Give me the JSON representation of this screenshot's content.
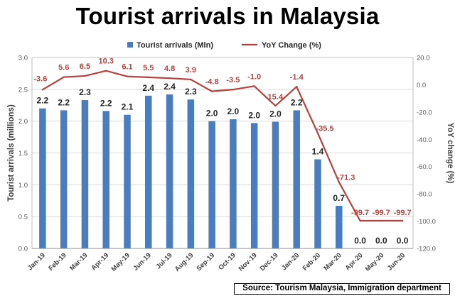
{
  "chart_data": {
    "type": "bar",
    "title": "Tourist arrivals in Malaysia",
    "categories": [
      "Jan-19",
      "Feb-19",
      "Mar-19",
      "Apr-19",
      "May-19",
      "Jun-19",
      "Jul-19",
      "Aug-19",
      "Sep-19",
      "Oct-19",
      "Nov-19",
      "Dec-19",
      "Jan-20",
      "Feb-20",
      "Mar-20",
      "Apr-20",
      "May-20",
      "Jun-20"
    ],
    "series": [
      {
        "name": "Tourist arrivals (Mln)",
        "type": "bar",
        "axis": "left",
        "color": "#4a7dbf",
        "values": [
          2.2,
          2.17,
          2.33,
          2.16,
          2.1,
          2.4,
          2.42,
          2.34,
          2.0,
          2.03,
          1.97,
          1.99,
          2.17,
          1.4,
          0.67,
          0.0,
          0.0,
          0.0
        ],
        "labels": [
          "2.2",
          "2.2",
          "2.3",
          "2.2",
          "2.1",
          "2.4",
          "2.4",
          "2.3",
          "2.0",
          "2.0",
          "2.0",
          "2.0",
          "2.2",
          "1.4",
          "0.7",
          "0.0",
          "0.0",
          "0.0"
        ]
      },
      {
        "name": "YoY Change (%)",
        "type": "line",
        "axis": "right",
        "color": "#b5423e",
        "values": [
          -3.6,
          5.6,
          6.5,
          10.3,
          6.1,
          5.5,
          4.8,
          3.9,
          -4.8,
          -3.5,
          -1.0,
          -15.4,
          -1.4,
          -35.5,
          -71.3,
          -99.7,
          -99.7,
          -99.7
        ],
        "labels": [
          "-3.6",
          "5.6",
          "6.5",
          "10.3",
          "6.1",
          "5.5",
          "4.8",
          "3.9",
          "-4.8",
          "-3.5",
          "-1.0",
          "-15.4",
          "-1.4",
          "-35.5",
          "-71.3",
          "-99.7",
          "-99.7",
          "-99.7"
        ]
      }
    ],
    "y_left": {
      "label": "Tourist arrivals (millions)",
      "ylim": [
        0,
        3.0
      ],
      "ticks": [
        0,
        0.5,
        1.0,
        1.5,
        2.0,
        2.5,
        3.0
      ],
      "tick_labels": [
        "0.0",
        "0.5",
        "1.0",
        "1.5",
        "2.0",
        "2.5",
        "3.0"
      ]
    },
    "y_right": {
      "label": "YoY change (%)",
      "ylim": [
        -120,
        20
      ],
      "ticks": [
        20,
        0,
        -20,
        -40,
        -60,
        -80,
        -100,
        -120
      ],
      "tick_labels": [
        "20.0",
        "0.0",
        "-20.0",
        "-40.0",
        "-60.0",
        "-80.0",
        "-100.0",
        "-120.0"
      ]
    },
    "grid": true,
    "legend": "top-center",
    "source": "Source: Tourism Malaysia, Immigration department"
  }
}
